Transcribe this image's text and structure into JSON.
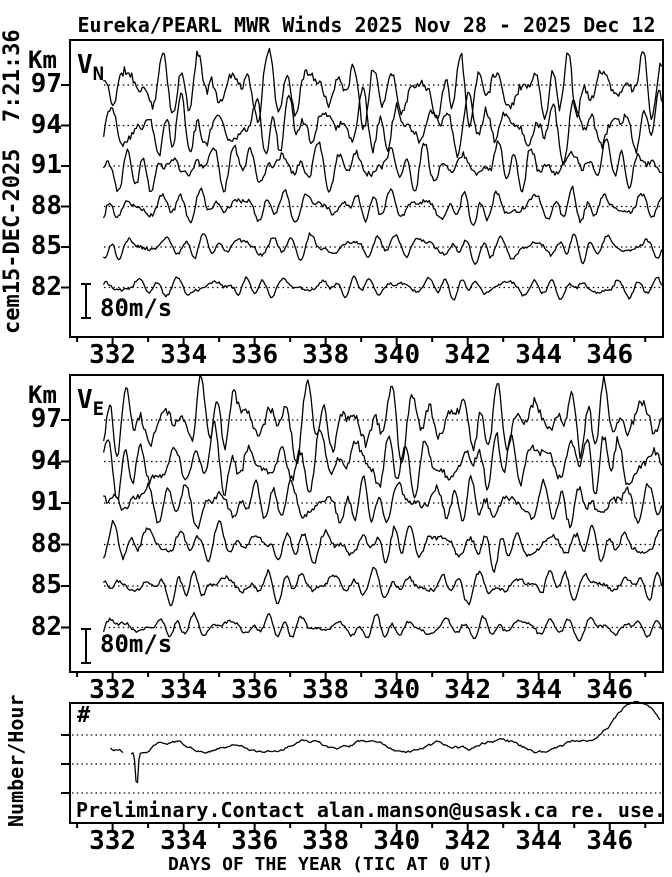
{
  "title": "Eureka/PEARL MWR Winds 2025 Nov 28 - 2025 Dec 12",
  "timestamp_sidebar": "cem15-DEC-2025  7:21:36",
  "colors": {
    "foreground": "#000000",
    "background": "#ffffff"
  },
  "chart_data": {
    "type": "line",
    "title": "Eureka/PEARL MWR Winds 2025 Nov 28 - 2025 Dec 12",
    "x_axis": {
      "label": "DAYS OF THE YEAR (TIC AT 0 UT)",
      "min": 330.8,
      "max": 347.5,
      "tick_days": [
        331,
        332,
        333,
        334,
        335,
        336,
        337,
        338,
        339,
        340,
        341,
        342,
        343,
        344,
        345,
        346,
        347
      ],
      "labeled_days": [
        332,
        334,
        336,
        338,
        340,
        342,
        344,
        346
      ],
      "tick_labels": [
        "332",
        "334",
        "336",
        "338",
        "340",
        "342",
        "344",
        "346"
      ]
    },
    "sampling": {
      "interval_hours": 1,
      "start_day": 331.75,
      "end_day": 347.5
    },
    "panels": [
      {
        "name": "v_north",
        "label_main": "V",
        "label_sub": "N",
        "y_label": "Km",
        "altitudes_km": [
          "97",
          "94",
          "91",
          "88",
          "85",
          "82"
        ],
        "altitude_spacing_km": 3,
        "scale_bar": {
          "label": "80m/s",
          "value_m_per_s": 80
        },
        "series": [
          {
            "altitude_km": 97,
            "amplitude_m_per_s": 90,
            "seed": 11
          },
          {
            "altitude_km": 94,
            "amplitude_m_per_s": 80,
            "seed": 12
          },
          {
            "altitude_km": 91,
            "amplitude_m_per_s": 59,
            "seed": 13
          },
          {
            "altitude_km": 88,
            "amplitude_m_per_s": 45,
            "seed": 14
          },
          {
            "altitude_km": 85,
            "amplitude_m_per_s": 35,
            "seed": 15
          },
          {
            "altitude_km": 82,
            "amplitude_m_per_s": 28,
            "seed": 16
          }
        ]
      },
      {
        "name": "v_east",
        "label_main": "V",
        "label_sub": "E",
        "y_label": "Km",
        "altitudes_km": [
          "97",
          "94",
          "91",
          "88",
          "85",
          "82"
        ],
        "altitude_spacing_km": 3,
        "scale_bar": {
          "label": "80m/s",
          "value_m_per_s": 80
        },
        "series": [
          {
            "altitude_km": 97,
            "amplitude_m_per_s": 94,
            "seed": 21
          },
          {
            "altitude_km": 94,
            "amplitude_m_per_s": 80,
            "seed": 22
          },
          {
            "altitude_km": 91,
            "amplitude_m_per_s": 62,
            "seed": 23
          },
          {
            "altitude_km": 88,
            "amplitude_m_per_s": 49,
            "seed": 24
          },
          {
            "altitude_km": 85,
            "amplitude_m_per_s": 40,
            "seed": 25
          },
          {
            "altitude_km": 82,
            "amplitude_m_per_s": 31,
            "seed": 26
          }
        ]
      },
      {
        "name": "meteor_count",
        "corner_label": "#",
        "y_label": "Number/Hour",
        "note": "Preliminary.Contact alan.manson@usask.ca re. use.",
        "gridline_count": 3,
        "series": [
          {
            "name": "count_rate",
            "seed": 31,
            "start_day": 331.95,
            "end_day": 347.45,
            "gap_days": [
              332.3,
              332.52
            ],
            "dip_day": 332.68,
            "end_peak_day": 346.75
          }
        ]
      }
    ]
  }
}
